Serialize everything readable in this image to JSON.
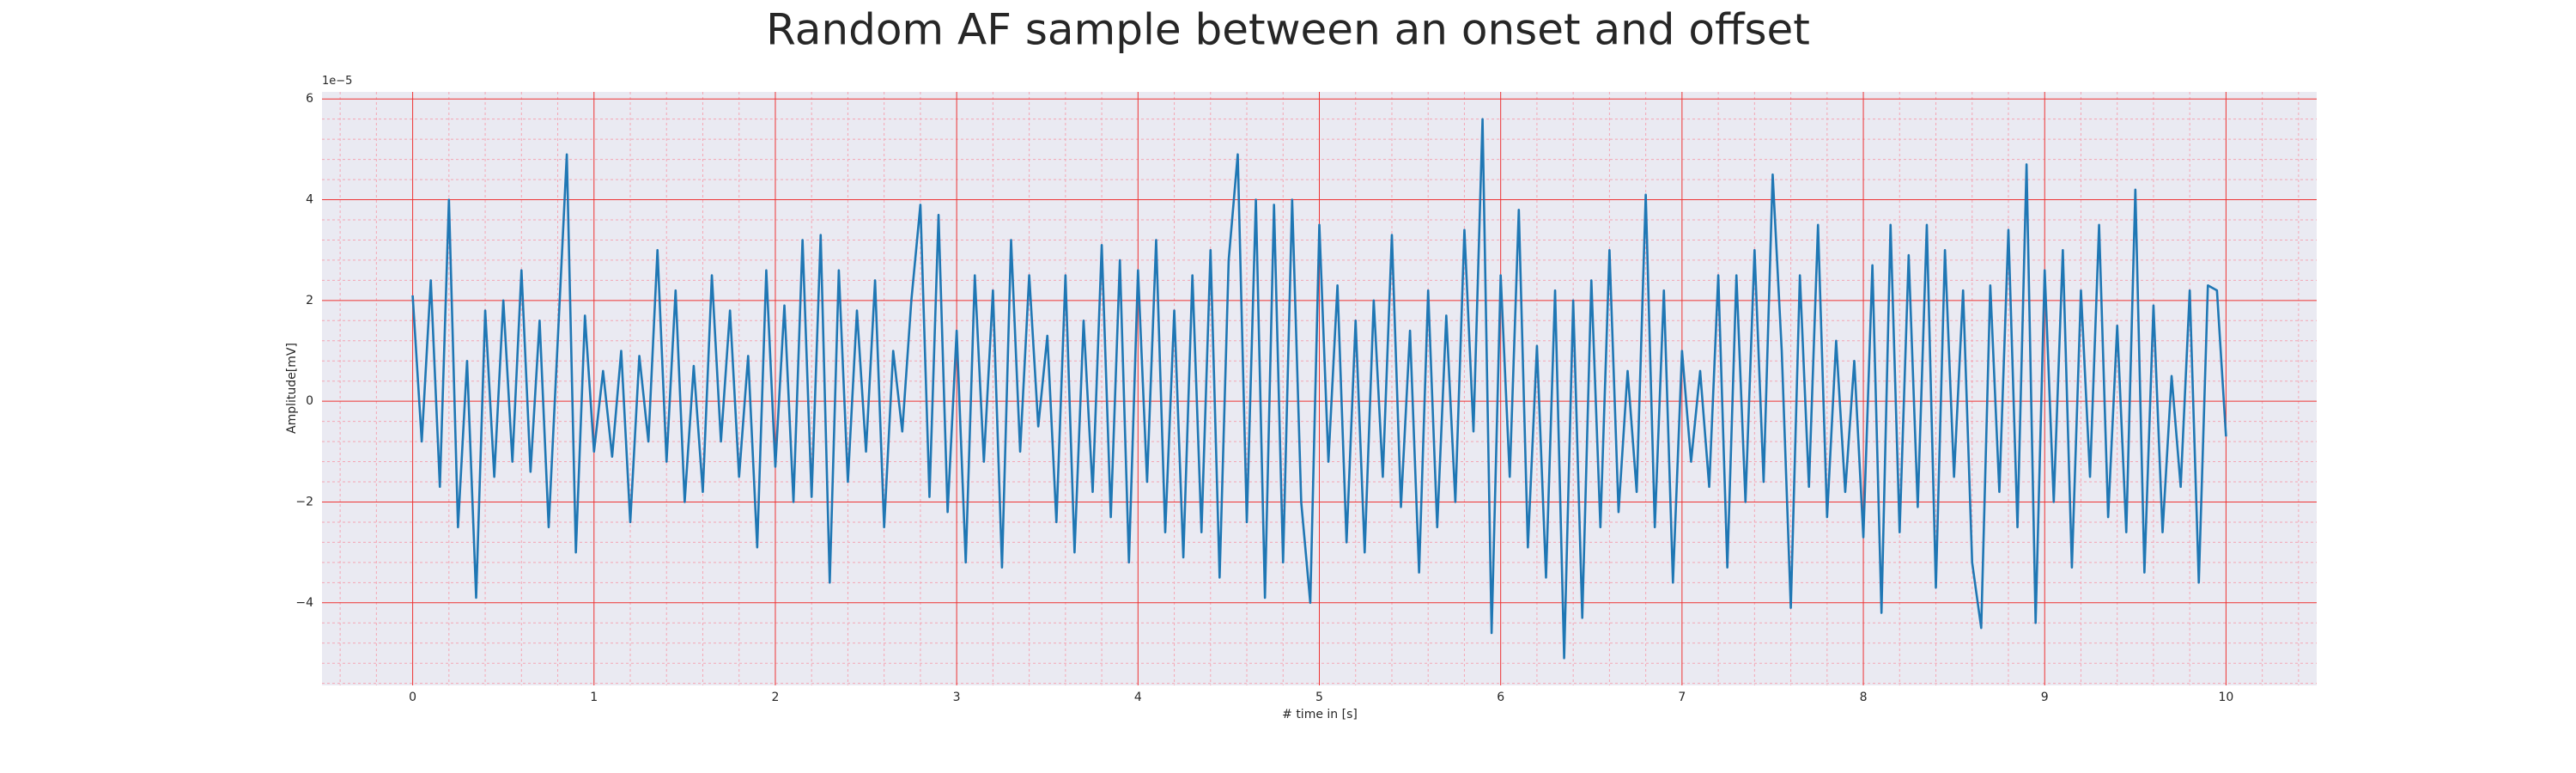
{
  "chart_data": {
    "type": "line",
    "title": "Random AF sample between an onset and offset",
    "xlabel": "# time in [s]",
    "ylabel": "Amplitude[mV]",
    "offset_text": "1e−5",
    "color": "#1f77b4",
    "grid": true,
    "minor_grid": true,
    "xlim": [
      -0.5,
      10.5
    ],
    "ylim": [
      -5.64,
      6.14
    ],
    "xticks": [
      0,
      1,
      2,
      3,
      4,
      5,
      6,
      7,
      8,
      9,
      10
    ],
    "yticks": [
      {
        "value": -4,
        "label": "−4"
      },
      {
        "value": -2,
        "label": "−2"
      },
      0,
      2,
      4,
      6
    ],
    "xminor": [
      -0.4,
      -0.2,
      0.2,
      0.4,
      0.6,
      0.8,
      1.2,
      1.4,
      1.6,
      1.8,
      2.2,
      2.4,
      2.6,
      2.8,
      3.2,
      3.4,
      3.6,
      3.8,
      4.2,
      4.4,
      4.6,
      4.8,
      5.2,
      5.4,
      5.6,
      5.8,
      6.2,
      6.4,
      6.6,
      6.8,
      7.2,
      7.4,
      7.6,
      7.8,
      8.2,
      8.4,
      8.6,
      8.8,
      9.2,
      9.4,
      9.6,
      9.8,
      10.2,
      10.4
    ],
    "yminor": [
      -5.6,
      -5.2,
      -4.8,
      -4.4,
      -3.6,
      -3.2,
      -2.8,
      -2.4,
      -1.6,
      -1.2,
      -0.8,
      -0.4,
      0.4,
      0.8,
      1.2,
      1.6,
      2.4,
      2.8,
      3.2,
      3.6,
      4.4,
      4.8,
      5.2,
      5.6
    ],
    "x": [
      0,
      0.05,
      0.1,
      0.15,
      0.2,
      0.25,
      0.3,
      0.35,
      0.4,
      0.45,
      0.5,
      0.55,
      0.6,
      0.65,
      0.7,
      0.75,
      0.8,
      0.85,
      0.9,
      0.95,
      1,
      1.05,
      1.1,
      1.15,
      1.2,
      1.25,
      1.3,
      1.35,
      1.4,
      1.45,
      1.5,
      1.55,
      1.6,
      1.65,
      1.7,
      1.75,
      1.8,
      1.85,
      1.9,
      1.95,
      2,
      2.05,
      2.1,
      2.15,
      2.2,
      2.25,
      2.3,
      2.35,
      2.4,
      2.45,
      2.5,
      2.55,
      2.6,
      2.65,
      2.7,
      2.75,
      2.8,
      2.85,
      2.9,
      2.95,
      3,
      3.05,
      3.1,
      3.15,
      3.2,
      3.25,
      3.3,
      3.35,
      3.4,
      3.45,
      3.5,
      3.55,
      3.6,
      3.65,
      3.7,
      3.75,
      3.8,
      3.85,
      3.9,
      3.95,
      4,
      4.05,
      4.1,
      4.15,
      4.2,
      4.25,
      4.3,
      4.35,
      4.4,
      4.45,
      4.5,
      4.55,
      4.6,
      4.65,
      4.7,
      4.75,
      4.8,
      4.85,
      4.9,
      4.95,
      5,
      5.05,
      5.1,
      5.15,
      5.2,
      5.25,
      5.3,
      5.35,
      5.4,
      5.45,
      5.5,
      5.55,
      5.6,
      5.65,
      5.7,
      5.75,
      5.8,
      5.85,
      5.9,
      5.95,
      6,
      6.05,
      6.1,
      6.15,
      6.2,
      6.25,
      6.3,
      6.35,
      6.4,
      6.45,
      6.5,
      6.55,
      6.6,
      6.65,
      6.7,
      6.75,
      6.8,
      6.85,
      6.9,
      6.95,
      7,
      7.05,
      7.1,
      7.15,
      7.2,
      7.25,
      7.3,
      7.35,
      7.4,
      7.45,
      7.5,
      7.55,
      7.6,
      7.65,
      7.7,
      7.75,
      7.8,
      7.85,
      7.9,
      7.95,
      8,
      8.05,
      8.1,
      8.15,
      8.2,
      8.25,
      8.3,
      8.35,
      8.4,
      8.45,
      8.5,
      8.55,
      8.6,
      8.65,
      8.7,
      8.75,
      8.8,
      8.85,
      8.9,
      8.95,
      9,
      9.05,
      9.1,
      9.15,
      9.2,
      9.25,
      9.3,
      9.35,
      9.4,
      9.45,
      9.5,
      9.55,
      9.6,
      9.65,
      9.7,
      9.75,
      9.8,
      9.85,
      9.9,
      9.95,
      10
    ],
    "values": [
      2.1,
      -0.8,
      2.4,
      -1.7,
      4.0,
      -2.5,
      0.8,
      -3.9,
      1.8,
      -1.5,
      2.0,
      -1.2,
      2.6,
      -1.4,
      1.6,
      -2.5,
      1.2,
      4.9,
      -3.0,
      1.7,
      -1.0,
      0.6,
      -1.1,
      1.0,
      -2.4,
      0.9,
      -0.8,
      3.0,
      -1.2,
      2.2,
      -2.0,
      0.7,
      -1.8,
      2.5,
      -0.8,
      1.8,
      -1.5,
      0.9,
      -2.9,
      2.6,
      -1.3,
      1.9,
      -2.0,
      3.2,
      -1.9,
      3.3,
      -3.6,
      2.6,
      -1.6,
      1.8,
      -1.0,
      2.4,
      -2.5,
      1.0,
      -0.6,
      2.0,
      3.9,
      -1.9,
      3.7,
      -2.2,
      1.4,
      -3.2,
      2.5,
      -1.2,
      2.2,
      -3.3,
      3.2,
      -1.0,
      2.5,
      -0.5,
      1.3,
      -2.4,
      2.5,
      -3.0,
      1.6,
      -1.8,
      3.1,
      -2.3,
      2.8,
      -3.2,
      2.6,
      -1.6,
      3.2,
      -2.6,
      1.8,
      -3.1,
      2.5,
      -2.6,
      3.0,
      -3.5,
      2.8,
      4.9,
      -2.4,
      4.0,
      -3.9,
      3.9,
      -3.2,
      4.0,
      -2.0,
      -4.0,
      3.5,
      -1.2,
      2.3,
      -2.8,
      1.6,
      -3.0,
      2.0,
      -1.5,
      3.3,
      -2.1,
      1.4,
      -3.4,
      2.2,
      -2.5,
      1.7,
      -2.0,
      3.4,
      -0.6,
      5.6,
      -4.6,
      2.5,
      -1.5,
      3.8,
      -2.9,
      1.1,
      -3.5,
      2.2,
      -5.1,
      2.0,
      -4.3,
      2.4,
      -2.5,
      3.0,
      -2.2,
      0.6,
      -1.8,
      4.1,
      -2.5,
      2.2,
      -3.6,
      1.0,
      -1.2,
      0.6,
      -1.7,
      2.5,
      -3.3,
      2.5,
      -2.0,
      3.0,
      -1.6,
      4.5,
      1.0,
      -4.1,
      2.5,
      -1.7,
      3.5,
      -2.3,
      1.2,
      -1.8,
      0.8,
      -2.7,
      2.7,
      -4.2,
      3.5,
      -2.6,
      2.9,
      -2.1,
      3.5,
      -3.7,
      3.0,
      -1.5,
      2.2,
      -3.2,
      -4.5,
      2.3,
      -1.8,
      3.4,
      -2.5,
      4.7,
      -4.4,
      2.6,
      -2.0,
      3.0,
      -3.3,
      2.2,
      -1.5,
      3.5,
      -2.3,
      1.5,
      -2.6,
      4.2,
      -3.4,
      1.9,
      -2.6,
      0.5,
      -1.7,
      2.2,
      -3.6,
      2.3,
      2.2,
      -0.7
    ]
  }
}
